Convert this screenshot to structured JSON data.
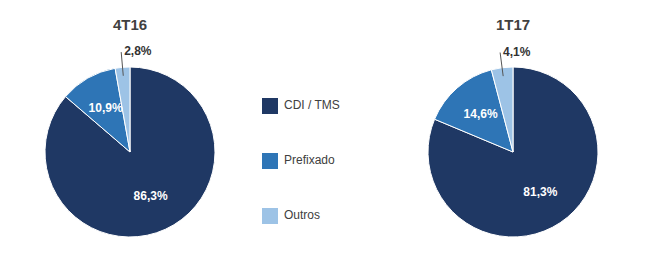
{
  "chart_data": {
    "type": "pie",
    "categories": [
      "CDI / TMS",
      "Prefixado",
      "Outros"
    ],
    "colors": [
      "#1f3864",
      "#2e75b6",
      "#9dc3e6"
    ],
    "series": [
      {
        "name": "4T16",
        "values": [
          86.3,
          10.9,
          2.8
        ],
        "value_labels": [
          "86,3%",
          "10,9%",
          "2,8%"
        ]
      },
      {
        "name": "1T17",
        "values": [
          81.3,
          14.6,
          4.1
        ],
        "value_labels": [
          "81,3%",
          "14,6%",
          "4,1%"
        ]
      }
    ],
    "data_labels": true,
    "legend": "center"
  }
}
